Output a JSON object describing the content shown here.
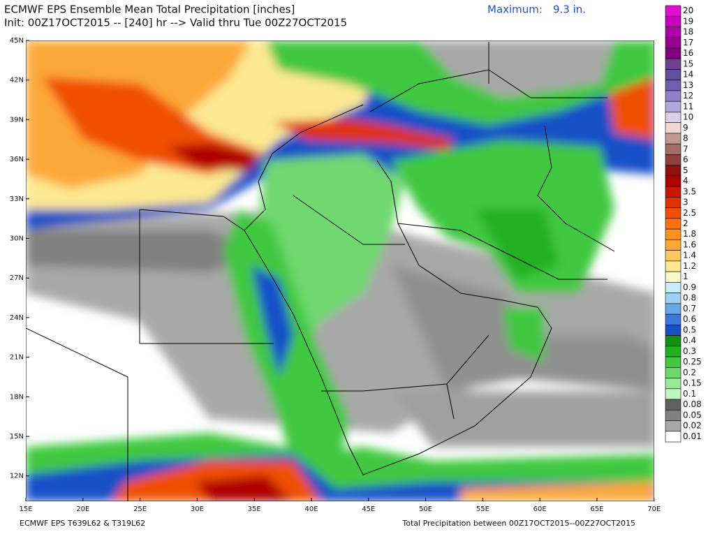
{
  "header": {
    "title": "ECMWF EPS Ensemble Mean Total Precipitation [inches]",
    "init": "Init: 00Z17OCT2015 -- [240] hr --> Valid thru Tue 00Z27OCT2015",
    "maximum_label": "Maximum:",
    "maximum_value": "9.3 in."
  },
  "map": {
    "lat_labels": [
      "45N",
      "42N",
      "39N",
      "36N",
      "33N",
      "30N",
      "27N",
      "24N",
      "21N",
      "18N",
      "15N",
      "12N"
    ],
    "lon_labels": [
      "15E",
      "20E",
      "25E",
      "30E",
      "35E",
      "40E",
      "45E",
      "50E",
      "55E",
      "60E",
      "65E",
      "70E"
    ]
  },
  "legend": {
    "levels": [
      {
        "value": 20,
        "color": "#e010d0"
      },
      {
        "value": 19,
        "color": "#c800c0"
      },
      {
        "value": 18,
        "color": "#b000a8"
      },
      {
        "value": 17,
        "color": "#980090"
      },
      {
        "value": 16,
        "color": "#800080"
      },
      {
        "value": 15,
        "color": "#704090"
      },
      {
        "value": 14,
        "color": "#6050a0"
      },
      {
        "value": 13,
        "color": "#7060b0"
      },
      {
        "value": 12,
        "color": "#9080c8"
      },
      {
        "value": 11,
        "color": "#b0a8d8"
      },
      {
        "value": 10,
        "color": "#d8d0e8"
      },
      {
        "value": 9,
        "color": "#f0d8d0"
      },
      {
        "value": 8,
        "color": "#c09890"
      },
      {
        "value": 7,
        "color": "#a07068"
      },
      {
        "value": 6,
        "color": "#904040"
      },
      {
        "value": 5,
        "color": "#901010"
      },
      {
        "value": 4,
        "color": "#b00000"
      },
      {
        "value": 3.5,
        "color": "#c81800"
      },
      {
        "value": 3,
        "color": "#e03000"
      },
      {
        "value": 2.5,
        "color": "#f05000"
      },
      {
        "value": 2,
        "color": "#f87010"
      },
      {
        "value": 1.8,
        "color": "#fc9020"
      },
      {
        "value": 1.6,
        "color": "#fca838"
      },
      {
        "value": 1.4,
        "color": "#fcc860"
      },
      {
        "value": 1.2,
        "color": "#fce890"
      },
      {
        "value": 1,
        "color": "#f8f8c8"
      },
      {
        "value": 0.9,
        "color": "#c8ecf8"
      },
      {
        "value": 0.8,
        "color": "#a0d0f0"
      },
      {
        "value": 0.7,
        "color": "#68a8e8"
      },
      {
        "value": 0.6,
        "color": "#3c78d8"
      },
      {
        "value": 0.5,
        "color": "#1850c8"
      },
      {
        "value": 0.4,
        "color": "#109010"
      },
      {
        "value": 0.3,
        "color": "#20b020"
      },
      {
        "value": 0.25,
        "color": "#40c840"
      },
      {
        "value": 0.2,
        "color": "#70d870"
      },
      {
        "value": 0.15,
        "color": "#98e898"
      },
      {
        "value": 0.1,
        "color": "#c0f4c0"
      },
      {
        "value": 0.08,
        "color": "#606060"
      },
      {
        "value": 0.05,
        "color": "#808080"
      },
      {
        "value": 0.02,
        "color": "#a8a8a8"
      },
      {
        "value": 0.01,
        "color": "#ffffff"
      }
    ]
  },
  "footer": {
    "left": "ECMWF EPS T639L62 & T319L62",
    "right": "Total Precipitation between 00Z17OCT2015--00Z27OCT2015"
  }
}
